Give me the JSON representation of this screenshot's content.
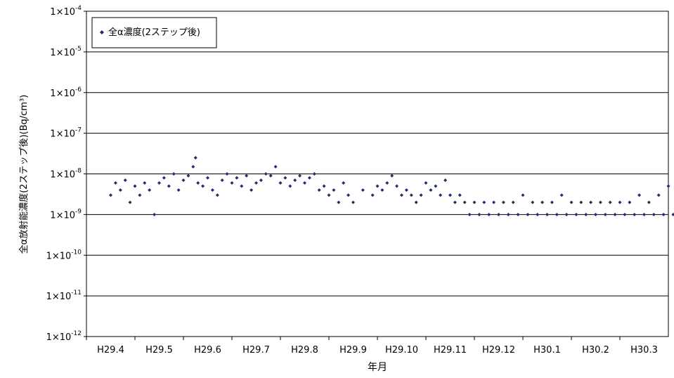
{
  "chart_data": {
    "type": "scatter",
    "title": "",
    "xlabel": "年月",
    "ylabel": "全α放射能濃度(2ステップ後)(Bq/cm³)",
    "y_scale": "log",
    "ylim": [
      1e-12,
      0.0001
    ],
    "y_ticks": [
      {
        "value": 0.0001,
        "base": "1×10",
        "exp": "-4"
      },
      {
        "value": 1e-05,
        "base": "1×10",
        "exp": "-5"
      },
      {
        "value": 1e-06,
        "base": "1×10",
        "exp": "-6"
      },
      {
        "value": 1e-07,
        "base": "1×10",
        "exp": "-7"
      },
      {
        "value": 1e-08,
        "base": "1×10",
        "exp": "-8"
      },
      {
        "value": 1e-09,
        "base": "1×10",
        "exp": "-9"
      },
      {
        "value": 1e-10,
        "base": "1×10",
        "exp": "-10"
      },
      {
        "value": 1e-11,
        "base": "1×10",
        "exp": "-11"
      },
      {
        "value": 1e-12,
        "base": "1×10",
        "exp": "-12"
      }
    ],
    "x_ticks": [
      "H29.4",
      "H29.5",
      "H29.6",
      "H29.7",
      "H29.8",
      "H29.9",
      "H29.10",
      "H29.11",
      "H29.12",
      "H30.1",
      "H30.2",
      "H30.3"
    ],
    "grid": "horizontal",
    "legend_position": "top-left",
    "marker_color": "#1f2d6b",
    "series": [
      {
        "name": "全α濃度(2ステップ後)",
        "x_month_index": [
          0.0,
          0.1,
          0.2,
          0.3,
          0.4,
          0.5,
          0.6,
          0.7,
          0.8,
          0.9,
          1.0,
          1.1,
          1.2,
          1.3,
          1.4,
          1.5,
          1.6,
          1.7,
          1.75,
          1.8,
          1.9,
          2.0,
          2.1,
          2.2,
          2.3,
          2.4,
          2.5,
          2.6,
          2.7,
          2.8,
          2.9,
          3.0,
          3.1,
          3.2,
          3.3,
          3.4,
          3.5,
          3.6,
          3.7,
          3.8,
          3.9,
          4.0,
          4.1,
          4.2,
          4.3,
          4.4,
          4.5,
          4.6,
          4.7,
          4.8,
          4.9,
          5.0,
          5.2,
          5.4,
          5.5,
          5.6,
          5.7,
          5.8,
          5.9,
          6.0,
          6.1,
          6.2,
          6.3,
          6.4,
          6.5,
          6.6,
          6.7,
          6.8,
          6.9,
          7.0,
          7.1,
          7.2,
          7.3,
          7.4,
          7.5,
          7.6,
          7.7,
          7.8,
          7.9,
          8.0,
          8.1,
          8.2,
          8.3,
          8.4,
          8.5,
          8.6,
          8.7,
          8.8,
          8.9,
          9.0,
          9.1,
          9.2,
          9.3,
          9.4,
          9.5,
          9.6,
          9.7,
          9.8,
          9.9,
          10.0,
          10.1,
          10.2,
          10.3,
          10.4,
          10.5,
          10.6,
          10.7,
          10.8,
          10.9,
          11.0,
          11.1,
          11.2,
          11.3,
          11.4,
          11.5,
          11.6,
          11.7,
          11.8,
          11.9
        ],
        "y_values": [
          3e-09,
          6e-09,
          4e-09,
          7e-09,
          2e-09,
          5e-09,
          3e-09,
          6e-09,
          4e-09,
          1e-09,
          6e-09,
          8e-09,
          5e-09,
          1e-08,
          4e-09,
          7e-09,
          9e-09,
          1.5e-08,
          2.5e-08,
          6e-09,
          5e-09,
          8e-09,
          4e-09,
          3e-09,
          7e-09,
          1e-08,
          6e-09,
          8e-09,
          5e-09,
          9e-09,
          4e-09,
          6e-09,
          7e-09,
          1e-08,
          9e-09,
          1.5e-08,
          6e-09,
          8e-09,
          5e-09,
          7e-09,
          9e-09,
          6e-09,
          8e-09,
          1e-08,
          4e-09,
          5e-09,
          3e-09,
          4e-09,
          2e-09,
          6e-09,
          3e-09,
          2e-09,
          4e-09,
          3e-09,
          5e-09,
          4e-09,
          6e-09,
          9e-09,
          5e-09,
          3e-09,
          4e-09,
          3e-09,
          2e-09,
          3e-09,
          6e-09,
          4e-09,
          5e-09,
          3e-09,
          7e-09,
          3e-09,
          2e-09,
          3e-09,
          2e-09,
          1e-09,
          2e-09,
          1e-09,
          2e-09,
          1e-09,
          2e-09,
          1e-09,
          2e-09,
          1e-09,
          2e-09,
          1e-09,
          3e-09,
          1e-09,
          2e-09,
          1e-09,
          2e-09,
          1e-09,
          2e-09,
          1e-09,
          3e-09,
          1e-09,
          2e-09,
          1e-09,
          2e-09,
          1e-09,
          2e-09,
          1e-09,
          2e-09,
          1e-09,
          2e-09,
          1e-09,
          2e-09,
          1e-09,
          2e-09,
          1e-09,
          3e-09,
          1e-09,
          2e-09,
          1e-09,
          3e-09,
          1e-09,
          5e-09,
          1e-09,
          3e-09,
          6e-09,
          7e-09
        ]
      }
    ]
  }
}
